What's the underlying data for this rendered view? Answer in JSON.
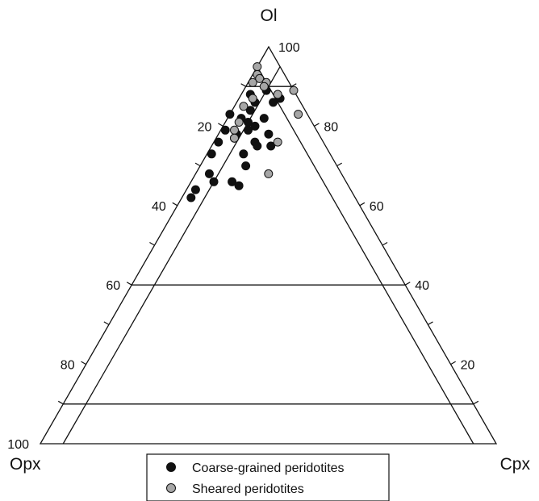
{
  "chart_data": {
    "type": "scatter",
    "subtype": "ternary",
    "title": "",
    "apices": {
      "top": "Ol",
      "left": "Opx",
      "right": "Cpx"
    },
    "ticks": {
      "left": [
        "20",
        "40",
        "60",
        "80",
        "100"
      ],
      "right": [
        "100",
        "80",
        "60",
        "40",
        "20"
      ]
    },
    "reference_lines": [
      {
        "component": "Ol",
        "value": 40
      },
      {
        "component": "Ol",
        "value": 90
      },
      {
        "component": "Ol",
        "value": 10
      },
      {
        "component": "Opx",
        "value": 5
      },
      {
        "component": "Cpx",
        "value": 5
      }
    ],
    "legend": {
      "placement": "bottom-center",
      "entries": [
        {
          "label": "Coarse-grained peridotites",
          "color": "#111111"
        },
        {
          "label": "Sheared peridotites",
          "color": "#a6a6a6"
        }
      ]
    },
    "series": [
      {
        "name": "Coarse-grained peridotites",
        "color": "#111111",
        "points": [
          {
            "ol": 83,
            "opx": 17,
            "cpx": 0
          },
          {
            "ol": 89,
            "opx": 6,
            "cpx": 5
          },
          {
            "ol": 88,
            "opx": 10,
            "cpx": 2
          },
          {
            "ol": 86,
            "opx": 10,
            "cpx": 4
          },
          {
            "ol": 86,
            "opx": 6,
            "cpx": 8
          },
          {
            "ol": 84,
            "opx": 12,
            "cpx": 4
          },
          {
            "ol": 82,
            "opx": 15,
            "cpx": 3
          },
          {
            "ol": 81,
            "opx": 14,
            "cpx": 5
          },
          {
            "ol": 82,
            "opx": 10,
            "cpx": 8
          },
          {
            "ol": 80,
            "opx": 13,
            "cpx": 7
          },
          {
            "ol": 79,
            "opx": 15,
            "cpx": 6
          },
          {
            "ol": 78,
            "opx": 18,
            "cpx": 4
          },
          {
            "ol": 79,
            "opx": 20,
            "cpx": 1
          },
          {
            "ol": 77,
            "opx": 19,
            "cpx": 4
          },
          {
            "ol": 76,
            "opx": 23,
            "cpx": 1
          },
          {
            "ol": 76,
            "opx": 15,
            "cpx": 9
          },
          {
            "ol": 75,
            "opx": 15,
            "cpx": 10
          },
          {
            "ol": 75,
            "opx": 12,
            "cpx": 13
          },
          {
            "ol": 73,
            "opx": 19,
            "cpx": 8
          },
          {
            "ol": 73,
            "opx": 26,
            "cpx": 1
          },
          {
            "ol": 70,
            "opx": 20,
            "cpx": 10
          },
          {
            "ol": 68,
            "opx": 29,
            "cpx": 3
          },
          {
            "ol": 66,
            "opx": 29,
            "cpx": 5
          },
          {
            "ol": 66,
            "opx": 25,
            "cpx": 9
          },
          {
            "ol": 65,
            "opx": 24,
            "cpx": 11
          },
          {
            "ol": 64,
            "opx": 34,
            "cpx": 2
          },
          {
            "ol": 62,
            "opx": 36,
            "cpx": 2
          },
          {
            "ol": 87,
            "opx": 4,
            "cpx": 9
          },
          {
            "ol": 78,
            "opx": 11,
            "cpx": 11
          }
        ]
      },
      {
        "name": "Sheared peridotites",
        "color": "#a6a6a6",
        "points": [
          {
            "ol": 95,
            "opx": 5,
            "cpx": 0
          },
          {
            "ol": 93,
            "opx": 6,
            "cpx": 1
          },
          {
            "ol": 92,
            "opx": 6,
            "cpx": 2
          },
          {
            "ol": 91,
            "opx": 8,
            "cpx": 1
          },
          {
            "ol": 91,
            "opx": 5,
            "cpx": 4
          },
          {
            "ol": 90,
            "opx": 6,
            "cpx": 4
          },
          {
            "ol": 89,
            "opx": 0,
            "cpx": 11
          },
          {
            "ol": 88,
            "opx": 4,
            "cpx": 8
          },
          {
            "ol": 87,
            "opx": 10,
            "cpx": 3
          },
          {
            "ol": 85,
            "opx": 13,
            "cpx": 2
          },
          {
            "ol": 83,
            "opx": 2,
            "cpx": 15
          },
          {
            "ol": 81,
            "opx": 16,
            "cpx": 3
          },
          {
            "ol": 79,
            "opx": 18,
            "cpx": 3
          },
          {
            "ol": 77,
            "opx": 19,
            "cpx": 4
          },
          {
            "ol": 76,
            "opx": 10,
            "cpx": 14
          },
          {
            "ol": 68,
            "opx": 16,
            "cpx": 16
          }
        ]
      }
    ]
  }
}
